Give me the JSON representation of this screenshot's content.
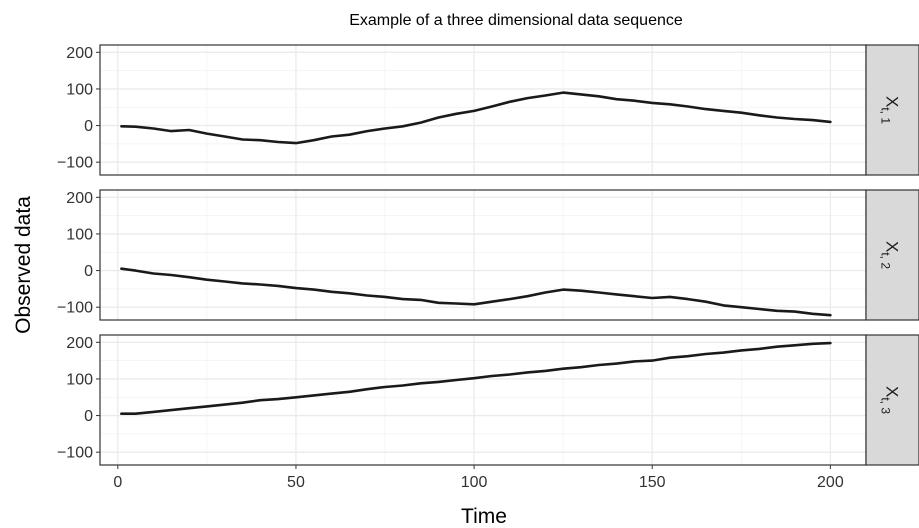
{
  "chart_data": {
    "type": "line",
    "title": "Example of a three dimensional data sequence",
    "xlabel": "Time",
    "ylabel": "Observed data",
    "xlim": [
      -5,
      210
    ],
    "ylim": [
      -135,
      220
    ],
    "x_ticks": [
      0,
      50,
      100,
      150,
      200
    ],
    "y_ticks": [
      -100,
      0,
      100,
      200
    ],
    "grid": true,
    "line_color": "#1a1a1a",
    "strip_fill": "#d9d9d9",
    "panels": [
      {
        "strip_main": "X",
        "strip_sub": "t, 1",
        "x": [
          1,
          5,
          10,
          15,
          20,
          25,
          30,
          35,
          40,
          45,
          50,
          55,
          60,
          65,
          70,
          75,
          80,
          85,
          90,
          95,
          100,
          105,
          110,
          115,
          120,
          125,
          130,
          135,
          140,
          145,
          150,
          155,
          160,
          165,
          170,
          175,
          180,
          185,
          190,
          195,
          200
        ],
        "values": [
          -2,
          -3,
          -8,
          -15,
          -12,
          -22,
          -30,
          -38,
          -40,
          -45,
          -48,
          -40,
          -30,
          -25,
          -15,
          -8,
          -2,
          8,
          22,
          32,
          40,
          52,
          65,
          75,
          82,
          90,
          85,
          80,
          72,
          68,
          62,
          58,
          52,
          45,
          40,
          35,
          28,
          22,
          18,
          15,
          10
        ]
      },
      {
        "strip_main": "X",
        "strip_sub": "t, 2",
        "x": [
          1,
          5,
          10,
          15,
          20,
          25,
          30,
          35,
          40,
          45,
          50,
          55,
          60,
          65,
          70,
          75,
          80,
          85,
          90,
          95,
          100,
          105,
          110,
          115,
          120,
          125,
          130,
          135,
          140,
          145,
          150,
          155,
          160,
          165,
          170,
          175,
          180,
          185,
          190,
          195,
          200
        ],
        "values": [
          5,
          0,
          -8,
          -12,
          -18,
          -25,
          -30,
          -35,
          -38,
          -42,
          -48,
          -52,
          -58,
          -62,
          -68,
          -72,
          -78,
          -80,
          -88,
          -90,
          -92,
          -85,
          -78,
          -70,
          -60,
          -52,
          -55,
          -60,
          -65,
          -70,
          -75,
          -72,
          -78,
          -85,
          -95,
          -100,
          -105,
          -110,
          -112,
          -118,
          -122
        ]
      },
      {
        "strip_main": "X",
        "strip_sub": "t, 3",
        "x": [
          1,
          5,
          10,
          15,
          20,
          25,
          30,
          35,
          40,
          45,
          50,
          55,
          60,
          65,
          70,
          75,
          80,
          85,
          90,
          95,
          100,
          105,
          110,
          115,
          120,
          125,
          130,
          135,
          140,
          145,
          150,
          155,
          160,
          165,
          170,
          175,
          180,
          185,
          190,
          195,
          200
        ],
        "values": [
          5,
          5,
          10,
          15,
          20,
          25,
          30,
          35,
          42,
          45,
          50,
          55,
          60,
          65,
          72,
          78,
          82,
          88,
          92,
          97,
          102,
          108,
          112,
          118,
          122,
          128,
          132,
          138,
          142,
          148,
          150,
          158,
          162,
          168,
          172,
          178,
          182,
          188,
          192,
          196,
          198
        ]
      }
    ]
  }
}
